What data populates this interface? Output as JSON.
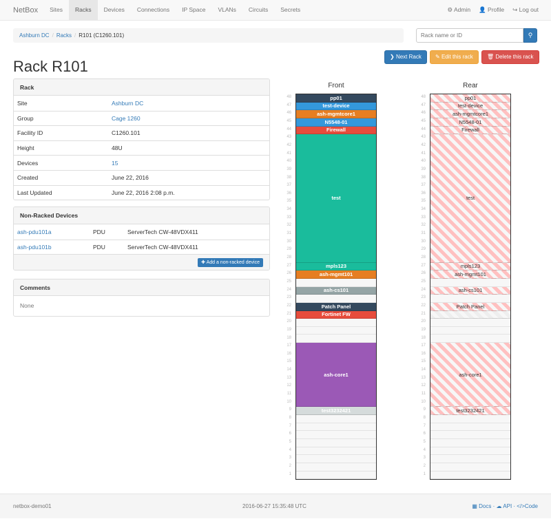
{
  "nav": {
    "brand": "NetBox",
    "items": [
      "Sites",
      "Racks",
      "Devices",
      "Connections",
      "IP Space",
      "VLANs",
      "Circuits",
      "Secrets"
    ],
    "active": "Racks",
    "right": [
      {
        "icon": "gear-icon",
        "label": "Admin"
      },
      {
        "icon": "user-icon",
        "label": "Profile"
      },
      {
        "icon": "log-out-icon",
        "label": "Log out"
      }
    ]
  },
  "breadcrumb": [
    "Ashburn DC",
    "Racks",
    "R101 (C1260.101)"
  ],
  "search": {
    "placeholder": "Rack name or ID",
    "icon": "search-icon"
  },
  "actions": {
    "next": "Next Rack",
    "edit": "Edit this rack",
    "delete": "Delete this rack"
  },
  "title": "Rack R101",
  "rack_panel": {
    "heading": "Rack",
    "rows": [
      {
        "label": "Site",
        "value": "Ashburn DC",
        "link": true
      },
      {
        "label": "Group",
        "value": "Cage 1260",
        "link": true
      },
      {
        "label": "Facility ID",
        "value": "C1260.101",
        "link": false
      },
      {
        "label": "Height",
        "value": "48U",
        "link": false
      },
      {
        "label": "Devices",
        "value": "15",
        "link": true
      },
      {
        "label": "Created",
        "value": "June 22, 2016",
        "link": false
      },
      {
        "label": "Last Updated",
        "value": "June 22, 2016 2:08 p.m.",
        "link": false
      }
    ]
  },
  "nonracked": {
    "heading": "Non-Racked Devices",
    "rows": [
      {
        "name": "ash-pdu101a",
        "role": "PDU",
        "type": "ServerTech CW-48VDX411"
      },
      {
        "name": "ash-pdu101b",
        "role": "PDU",
        "type": "ServerTech CW-48VDX411"
      }
    ],
    "add_label": "Add a non-racked device"
  },
  "comments": {
    "heading": "Comments",
    "body": "None"
  },
  "rack": {
    "units": 48,
    "front_label": "Front",
    "rear_label": "Rear",
    "devices": [
      {
        "name": "pp01",
        "position": 48,
        "height": 1,
        "color": "#34495e"
      },
      {
        "name": "test-device",
        "position": 47,
        "height": 1,
        "color": "#3498db"
      },
      {
        "name": "ash-mgmtcore1",
        "position": 46,
        "height": 1,
        "color": "#e67e22"
      },
      {
        "name": "N5548-01",
        "position": 45,
        "height": 1,
        "color": "#3498db"
      },
      {
        "name": "Firewall",
        "position": 44,
        "height": 1,
        "color": "#e74c3c"
      },
      {
        "name": "test",
        "position": 28,
        "height": 16,
        "color": "#1abc9c"
      },
      {
        "name": "mpls123",
        "position": 27,
        "height": 1,
        "color": "#1abc9c"
      },
      {
        "name": "ash-mgmt101",
        "position": 26,
        "height": 1,
        "color": "#e67e22"
      },
      {
        "name": "ash-cs101",
        "position": 24,
        "height": 1,
        "color": "#95a5a6"
      },
      {
        "name": "Patch Panel",
        "position": 22,
        "height": 1,
        "color": "#34495e"
      },
      {
        "name": "Fortinet FW",
        "position": 21,
        "height": 1,
        "color": "#e74c3c",
        "front_only": true
      },
      {
        "name": "ash-core1",
        "position": 10,
        "height": 8,
        "color": "#9b59b6"
      },
      {
        "name": "test3232421",
        "position": 9,
        "height": 1,
        "color": "#d5dbdb"
      }
    ]
  },
  "footer": {
    "host": "netbox-demo01",
    "time": "2016-06-27 15:35:48 UTC",
    "links": [
      "Docs",
      "API",
      "Code"
    ]
  }
}
